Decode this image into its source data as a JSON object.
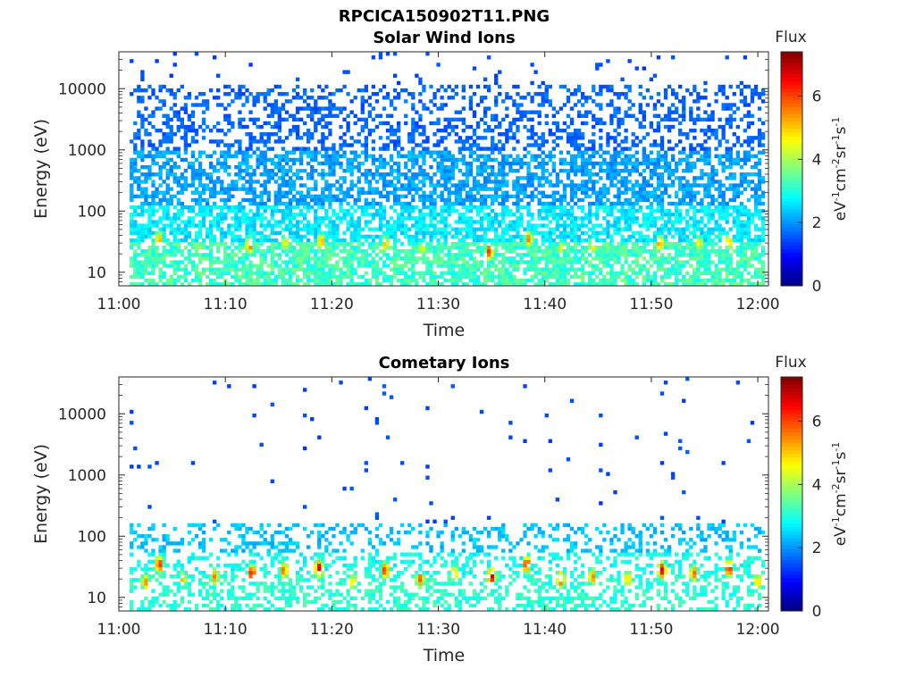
{
  "figure": {
    "title": "RPCICA150902T11.PNG"
  },
  "colorbar": {
    "label": "Flux",
    "unit": {
      "base1": "eV",
      "sup1": "-1",
      "base2": "cm",
      "sup2": "-2",
      "base3": "sr",
      "sup3": "-1",
      "base4": "s",
      "sup4": "-1"
    },
    "ticks": [
      "0",
      "2",
      "4",
      "6"
    ],
    "range": [
      0,
      7.4
    ],
    "colormap": "jet"
  },
  "chart_data": [
    {
      "type": "heatmap",
      "title": "Solar Wind Ions",
      "xlabel": "Time",
      "ylabel": "Energy (eV)",
      "x_ticks": [
        "11:00",
        "11:10",
        "11:20",
        "11:30",
        "11:40",
        "11:50",
        "12:00"
      ],
      "y_ticks": [
        "10",
        "100",
        "1000",
        "10000"
      ],
      "xlim_minutes_after_1100": [
        0,
        61
      ],
      "ylim_eV": [
        6,
        40000
      ],
      "log_y": true,
      "colorbar_ticks": [
        0,
        2,
        4,
        6
      ],
      "cmax": 7.4,
      "description": "Dense coverage from ~6 eV to ~10 keV; flux ~1.5-2.5 above 100 eV, ~3 below 100 eV with recurring hot spots near 20-40 eV",
      "hotspots": [
        {
          "t_min": 3.8,
          "e_eV": 35,
          "flux": 5.3
        },
        {
          "t_min": 7.5,
          "e_eV": 25,
          "flux": 4.2
        },
        {
          "t_min": 12.3,
          "e_eV": 28,
          "flux": 5.8
        },
        {
          "t_min": 15.6,
          "e_eV": 30,
          "flux": 4.8
        },
        {
          "t_min": 19.0,
          "e_eV": 32,
          "flux": 5.5
        },
        {
          "t_min": 25.0,
          "e_eV": 30,
          "flux": 5.2
        },
        {
          "t_min": 28.5,
          "e_eV": 25,
          "flux": 4.7
        },
        {
          "t_min": 34.8,
          "e_eV": 22,
          "flux": 6.2
        },
        {
          "t_min": 38.5,
          "e_eV": 35,
          "flux": 5.6
        },
        {
          "t_min": 41.5,
          "e_eV": 25,
          "flux": 4.5
        },
        {
          "t_min": 44.5,
          "e_eV": 28,
          "flux": 5.0
        },
        {
          "t_min": 50.8,
          "e_eV": 30,
          "flux": 5.6
        },
        {
          "t_min": 54.5,
          "e_eV": 30,
          "flux": 4.8
        },
        {
          "t_min": 57.3,
          "e_eV": 32,
          "flux": 5.2
        }
      ]
    },
    {
      "type": "heatmap",
      "title": "Cometary Ions",
      "xlabel": "Time",
      "ylabel": "Energy (eV)",
      "x_ticks": [
        "11:00",
        "11:10",
        "11:20",
        "11:30",
        "11:40",
        "11:50",
        "12:00"
      ],
      "y_ticks": [
        "10",
        "100",
        "1000",
        "10000"
      ],
      "xlim_minutes_after_1100": [
        0,
        61
      ],
      "ylim_eV": [
        6,
        40000
      ],
      "log_y": true,
      "colorbar_ticks": [
        0,
        2,
        4,
        6
      ],
      "cmax": 7.4,
      "description": "Intense low-energy bursts (10-40 eV, flux up to ~7) recurring every ~3.3 min; sparse scattered points 100 eV-20 keV",
      "hotspots": [
        {
          "t_min": 2.5,
          "e_eV": 18,
          "flux": 5.5
        },
        {
          "t_min": 3.8,
          "e_eV": 35,
          "flux": 6.3
        },
        {
          "t_min": 6.0,
          "e_eV": 20,
          "flux": 5.2
        },
        {
          "t_min": 9.0,
          "e_eV": 22,
          "flux": 5.6
        },
        {
          "t_min": 12.5,
          "e_eV": 25,
          "flux": 6.5
        },
        {
          "t_min": 15.5,
          "e_eV": 28,
          "flux": 5.8
        },
        {
          "t_min": 18.8,
          "e_eV": 30,
          "flux": 6.8
        },
        {
          "t_min": 22.0,
          "e_eV": 18,
          "flux": 5.0
        },
        {
          "t_min": 25.0,
          "e_eV": 28,
          "flux": 6.2
        },
        {
          "t_min": 28.3,
          "e_eV": 20,
          "flux": 5.9
        },
        {
          "t_min": 31.5,
          "e_eV": 25,
          "flux": 5.2
        },
        {
          "t_min": 35.0,
          "e_eV": 22,
          "flux": 6.8
        },
        {
          "t_min": 38.3,
          "e_eV": 35,
          "flux": 6.4
        },
        {
          "t_min": 41.5,
          "e_eV": 20,
          "flux": 6.3
        },
        {
          "t_min": 44.5,
          "e_eV": 22,
          "flux": 5.6
        },
        {
          "t_min": 47.8,
          "e_eV": 20,
          "flux": 5.1
        },
        {
          "t_min": 51.0,
          "e_eV": 28,
          "flux": 6.7
        },
        {
          "t_min": 54.0,
          "e_eV": 25,
          "flux": 5.8
        },
        {
          "t_min": 57.3,
          "e_eV": 30,
          "flux": 6.5
        },
        {
          "t_min": 60.0,
          "e_eV": 18,
          "flux": 5.2
        }
      ]
    }
  ]
}
